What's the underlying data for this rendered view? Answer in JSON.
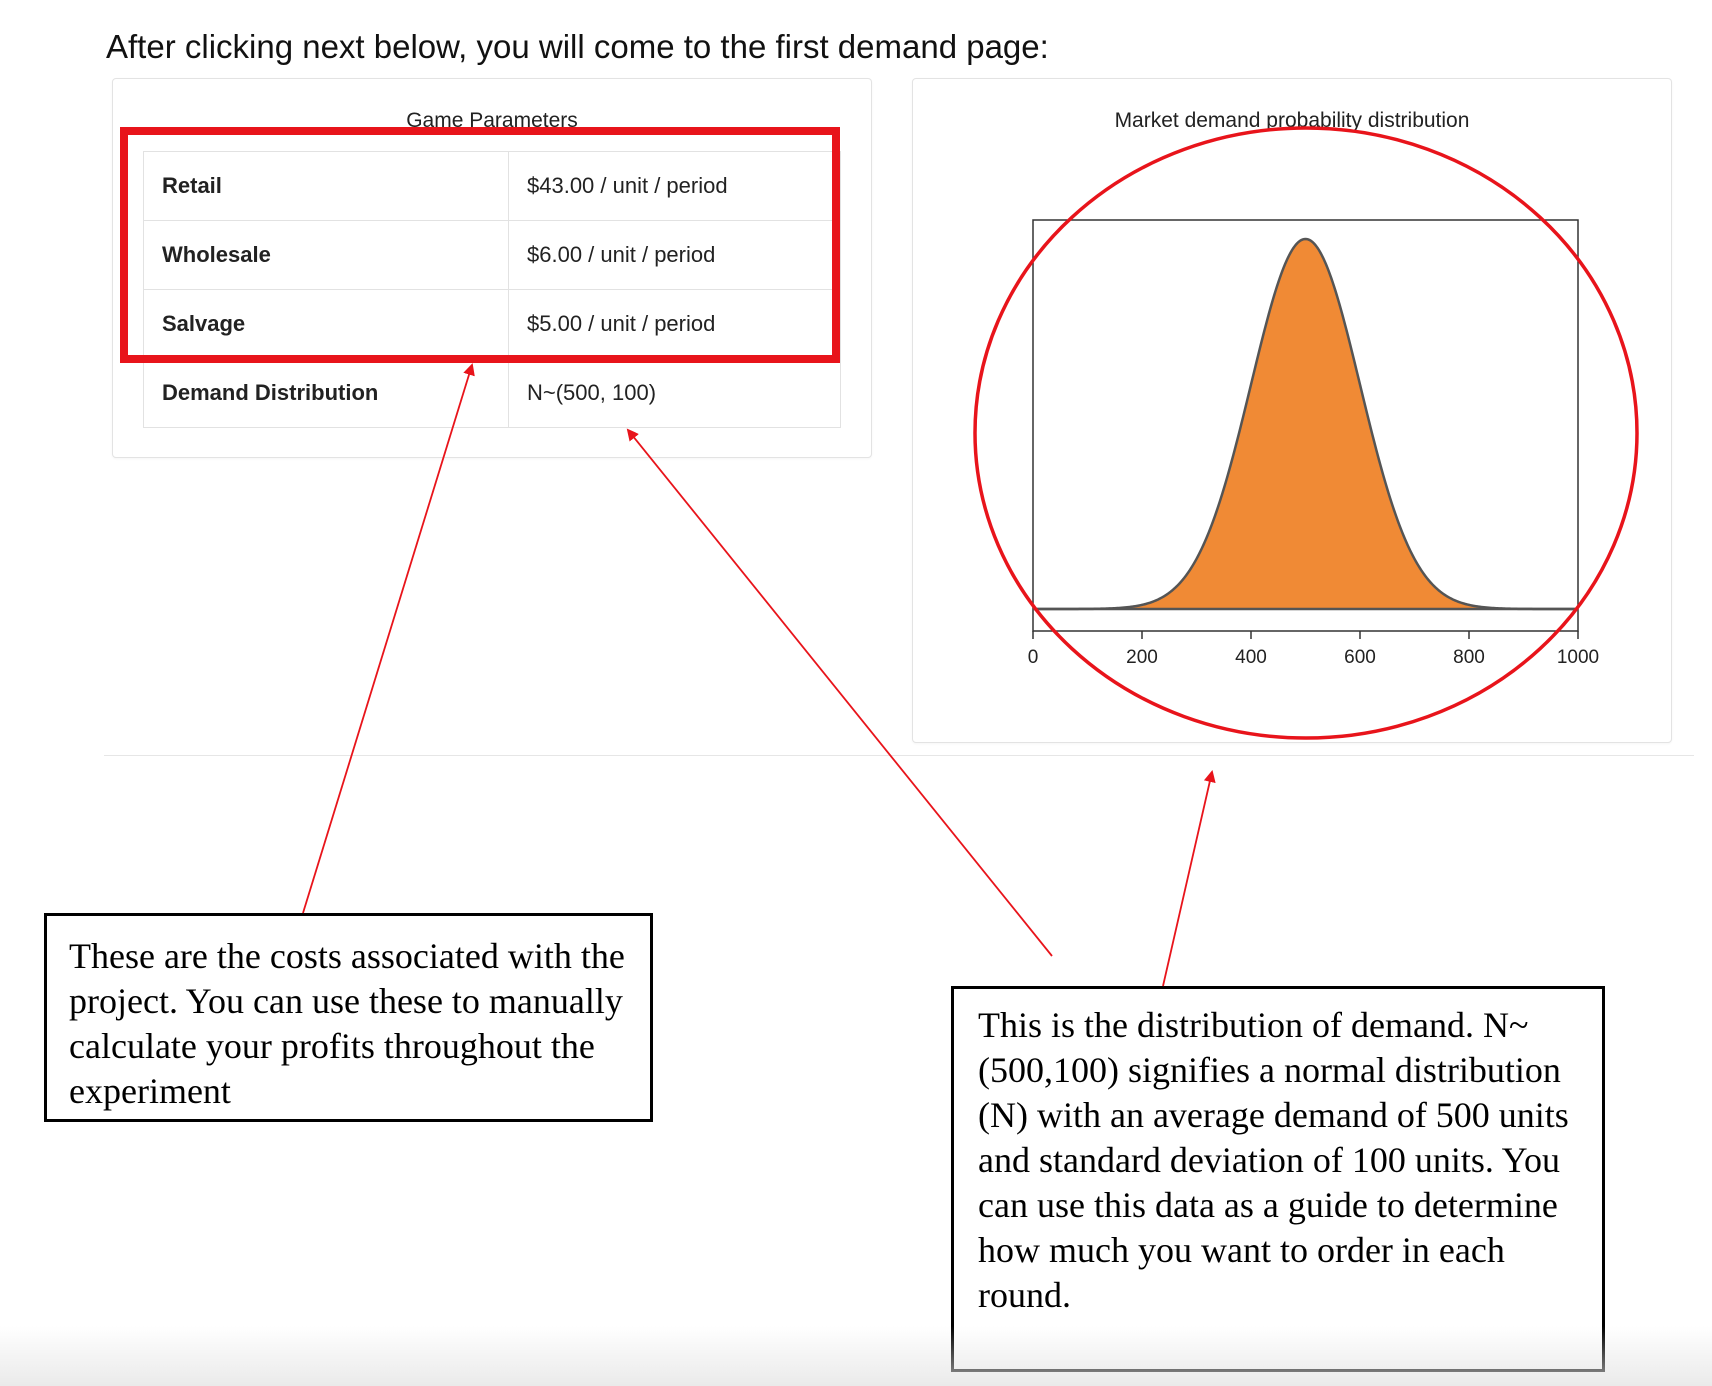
{
  "intro_text": "After clicking next below, you will come to the first demand page:",
  "game_parameters": {
    "title": "Game Parameters",
    "rows": [
      {
        "label": "Retail",
        "value": "$43.00 / unit / period"
      },
      {
        "label": "Wholesale",
        "value": "$6.00 / unit / period"
      },
      {
        "label": "Salvage",
        "value": "$5.00 / unit / period"
      },
      {
        "label": "Demand Distribution",
        "value": "N~(500, 100)"
      }
    ]
  },
  "chart_data": {
    "type": "area",
    "title": "Market demand probability distribution",
    "distribution": "normal",
    "mean": 500,
    "std": 100,
    "xlim": [
      0,
      1000
    ],
    "x_ticks": [
      0,
      200,
      400,
      600,
      800,
      1000
    ],
    "x_tick_labels": [
      "0",
      "200",
      "400",
      "600",
      "800",
      "1000"
    ],
    "fill_color": "#F08A35",
    "line_color": "#555555",
    "xlabel": "",
    "ylabel": ""
  },
  "annotations": {
    "costs_note": "These are the costs associated with the project. You can use these to manually calculate your profits throughout the experiment",
    "distribution_note": "This is the distribution of demand. N~ (500,100) signifies a normal distribution (N) with an average demand of 500 units and standard deviation of 100 units. You can use this data as a guide to determine how much you want to order in each round.",
    "highlight_color": "#E8141B"
  }
}
